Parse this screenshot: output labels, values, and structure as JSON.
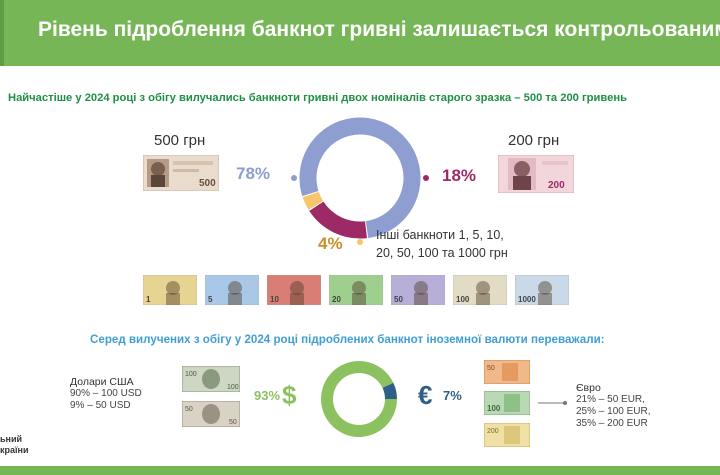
{
  "header": {
    "title": "Рівень підроблення банкнот гривні залишається контрольованим"
  },
  "subtitle": "Найчастіше у 2024 році з обігу вилучались банкноти гривні двох номіналів старого зразка – 500 та 200 гривень",
  "colors": {
    "green": "#77b657",
    "note500": "#8f9ed1",
    "note200": "#9c2a66",
    "other": "#f5c66b",
    "usd": "#8cc160",
    "eur": "#2f5f86"
  },
  "labels": {
    "note500": "500 грн",
    "note200": "200 грн",
    "other_line1": "Інші банкноти 1, 5, 10,",
    "other_line2": "20, 50, 100 та 1000 грн"
  },
  "small_notes": [
    "1",
    "5",
    "10",
    "20",
    "50",
    "100",
    "1000"
  ],
  "chart_data": [
    {
      "type": "pie",
      "title": "",
      "categories": [
        "500 грн",
        "200 грн",
        "Інші банкноти 1, 5, 10, 20, 50, 100 та 1000 грн"
      ],
      "values": [
        78,
        18,
        4
      ],
      "value_labels": [
        "78%",
        "18%",
        "4%"
      ],
      "colors": [
        "#8f9ed1",
        "#9c2a66",
        "#f5c66b"
      ]
    },
    {
      "type": "pie",
      "title": "Серед вилучених з обігу у 2024 році підроблених банкнот іноземної валюти переважали:",
      "categories": [
        "$",
        "€"
      ],
      "values": [
        93,
        7
      ],
      "value_labels": [
        "93%",
        "7%"
      ],
      "colors": [
        "#8cc160",
        "#2f5f86"
      ]
    }
  ],
  "foreign": {
    "heading": "Серед вилучених з обігу у 2024 році підроблених банкнот іноземної валюти переважали:",
    "usd": {
      "symbol": "$",
      "pct": "93%",
      "name": "Долари США",
      "lines": [
        "90% – 100 USD",
        "9% – 50 USD"
      ]
    },
    "eur": {
      "symbol": "€",
      "pct": "7%",
      "name": "Євро",
      "lines": [
        "21% – 50 EUR,",
        "25% – 100 EUR,",
        "35% – 200 EUR"
      ]
    }
  },
  "brand": [
    "ьний",
    "країни"
  ]
}
